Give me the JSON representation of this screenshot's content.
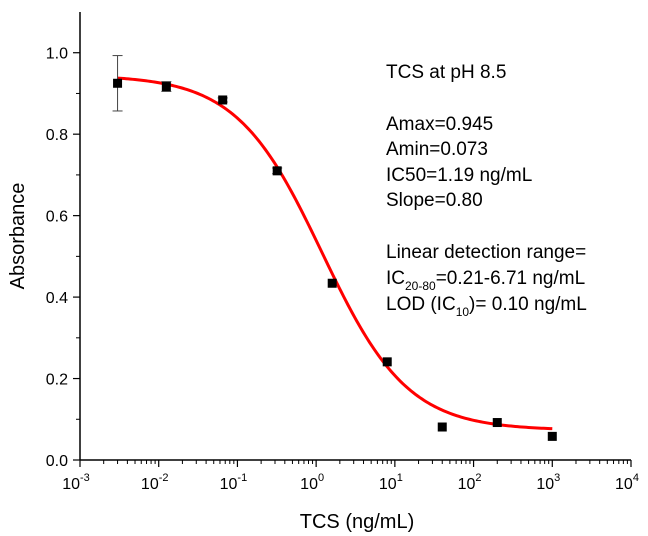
{
  "chart_data": {
    "type": "scatter",
    "xscale": "log",
    "xlim": [
      0.001,
      10000
    ],
    "ylim": [
      0.0,
      1.1
    ],
    "xlabel": "TCS (ng/mL)",
    "ylabel": "Absorbance",
    "x_ticks": [
      {
        "value": 0.001,
        "base": "10",
        "exp": "-3"
      },
      {
        "value": 0.01,
        "base": "10",
        "exp": "-2"
      },
      {
        "value": 0.1,
        "base": "10",
        "exp": "-1"
      },
      {
        "value": 1,
        "base": "10",
        "exp": "0"
      },
      {
        "value": 10,
        "base": "10",
        "exp": "1"
      },
      {
        "value": 100,
        "base": "10",
        "exp": "2"
      },
      {
        "value": 1000,
        "base": "10",
        "exp": "3"
      },
      {
        "value": 10000,
        "base": "10",
        "exp": "4"
      }
    ],
    "y_ticks": [
      {
        "value": 0.0,
        "label": "0.0"
      },
      {
        "value": 0.2,
        "label": "0.2"
      },
      {
        "value": 0.4,
        "label": "0.4"
      },
      {
        "value": 0.6,
        "label": "0.6"
      },
      {
        "value": 0.8,
        "label": "0.8"
      },
      {
        "value": 1.0,
        "label": "1.0"
      }
    ],
    "points": [
      {
        "x": 0.003,
        "y": 0.925,
        "err": 0.068
      },
      {
        "x": 0.0125,
        "y": 0.917,
        "err": 0.012
      },
      {
        "x": 0.065,
        "y": 0.884,
        "err": 0.005
      },
      {
        "x": 0.32,
        "y": 0.71,
        "err": 0.007
      },
      {
        "x": 1.6,
        "y": 0.434,
        "err": 0.0
      },
      {
        "x": 8.0,
        "y": 0.241,
        "err": 0.0
      },
      {
        "x": 40,
        "y": 0.081,
        "err": 0.0
      },
      {
        "x": 200,
        "y": 0.092,
        "err": 0.0
      },
      {
        "x": 1000,
        "y": 0.058,
        "err": 0.0
      }
    ],
    "fit": {
      "model": "four-parameter logistic",
      "amax": 0.945,
      "amin": 0.073,
      "ic50": 1.19,
      "slope": 0.8,
      "x_range": [
        0.003,
        1000
      ],
      "color": "#ff0000"
    },
    "marker_color": "#000000",
    "grid": false,
    "annotations": {
      "title": "TCS at pH 8.5",
      "amax": "Amax=0.945",
      "amin": "Amin=0.073",
      "ic50": "IC50=1.19 ng/mL",
      "slope": "Slope=0.80",
      "linear_heading": "Linear detection range=",
      "linear_prefix": "IC",
      "linear_sub": "20-80",
      "linear_value": "=0.21-6.71 ng/mL",
      "lod_prefix": "LOD (IC",
      "lod_sub": "10",
      "lod_value": ")= 0.10 ng/mL"
    }
  }
}
